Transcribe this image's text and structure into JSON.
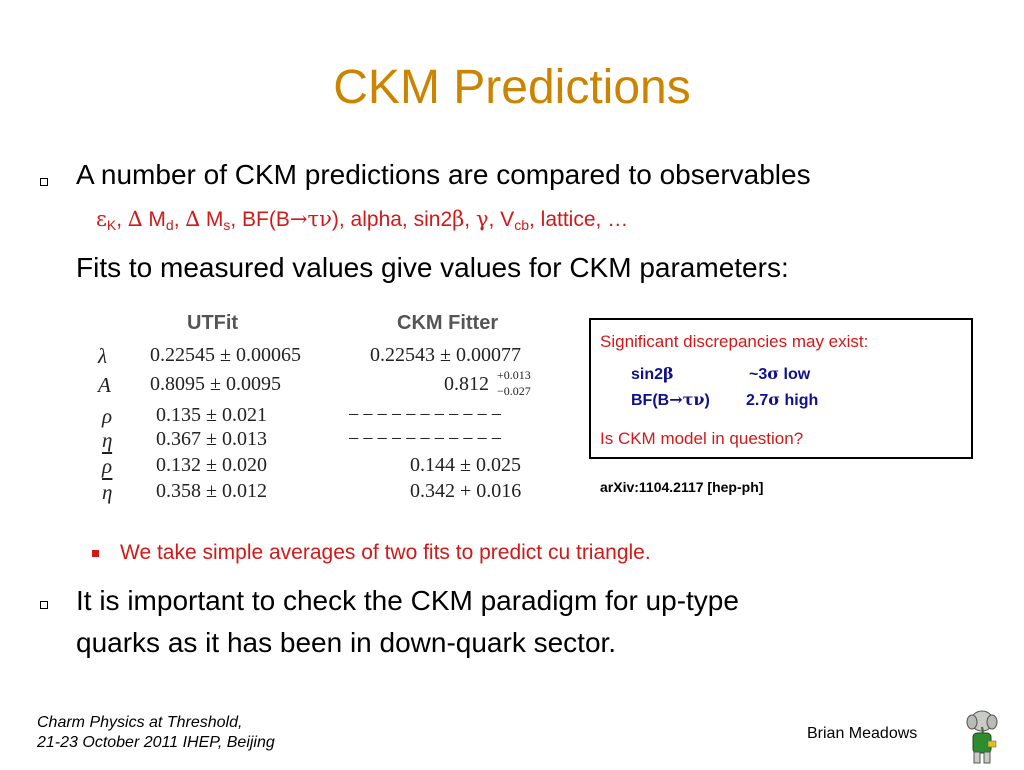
{
  "slide": {
    "title": "CKM Predictions",
    "bullet1": "A number of CKM predictions are compared to observables",
    "observables": {
      "eps": "ε",
      "eps_sub": "K",
      "sep1": ", ",
      "delta1": "∆",
      "m1": " M",
      "m1_sub": "d",
      "sep2": ", ",
      "delta2": "∆",
      "m2": " M",
      "m2_sub": "s",
      "bf": ", BF(B",
      "arrow": "→",
      "taunu": "τν",
      "rest1": "), alpha, sin2",
      "beta": "β",
      "sep3": ", ",
      "gamma": "γ",
      "vcb": ", V",
      "vcb_sub": "cb",
      "rest2": ", lattice, …"
    },
    "fits_line": "Fits to measured values give values for CKM parameters:",
    "table": {
      "headers": [
        "UTFit",
        "CKM Fitter"
      ],
      "rows": [
        {
          "symbol": "λ",
          "utfit": "0.22545 ± 0.00065",
          "ckmfitter": "0.22543 ± 0.00077"
        },
        {
          "symbol": "A",
          "utfit": "0.8095 ± 0.0095",
          "ckmfitter": "0.812",
          "ckm_up": "+0.013",
          "ckm_down": "−0.027"
        },
        {
          "symbol": "ρ",
          "utfit": "0.135 ± 0.021",
          "ckmfitter": "− − − − − − − − − − −"
        },
        {
          "symbol": "η",
          "utfit": "0.367 ± 0.013",
          "ckmfitter": "− − − − − − − − − − −"
        },
        {
          "symbol": "ρ",
          "utfit": "0.132 ± 0.020",
          "ckmfitter": "0.144 ± 0.025"
        },
        {
          "symbol": "η",
          "utfit": "0.358 ± 0.012",
          "ckmfitter": "0.342 + 0.016"
        }
      ]
    },
    "box": {
      "line1": "Significant discrepancies may exist:",
      "sin": "sin2",
      "sin_beta": "β",
      "sin_val": "~3",
      "sin_sigma": "σ",
      "sin_low": " low",
      "bf": "BF(B",
      "bf_arrow": "→",
      "bf_taunu": "τν",
      "bf_close": ")",
      "bf_val": "2.7",
      "bf_sigma": "σ",
      "bf_high": " high",
      "question": "Is CKM model in question?"
    },
    "arxiv": "arXiv:1104.2117 [hep-ph]",
    "sub_bullet": "We take simple averages of two fits to predict cu triangle.",
    "bullet2_line1": "It is important to check the CKM paradigm for up-type",
    "bullet2_line2": "quarks as it has been in down-quark sector.",
    "footer_line1": "Charm Physics at Threshold,",
    "footer_line2": "21-23 October 2011 IHEP, Beijing",
    "author": "Brian Meadows"
  },
  "colors": {
    "title": "#cc8400",
    "red": "#d11919",
    "blue": "#10108c"
  }
}
